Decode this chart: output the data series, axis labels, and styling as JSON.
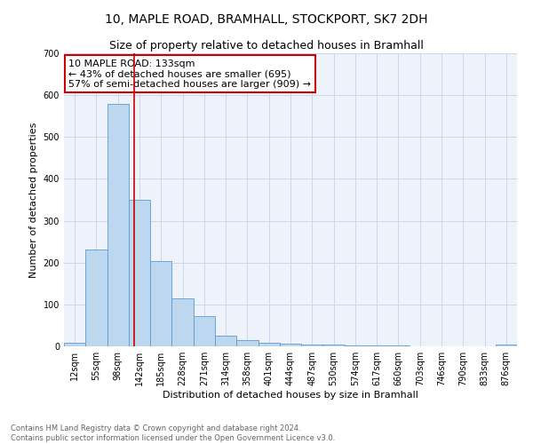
{
  "title": "10, MAPLE ROAD, BRAMHALL, STOCKPORT, SK7 2DH",
  "subtitle": "Size of property relative to detached houses in Bramhall",
  "xlabel": "Distribution of detached houses by size in Bramhall",
  "ylabel": "Number of detached properties",
  "bin_labels": [
    "12sqm",
    "55sqm",
    "98sqm",
    "142sqm",
    "185sqm",
    "228sqm",
    "271sqm",
    "314sqm",
    "358sqm",
    "401sqm",
    "444sqm",
    "487sqm",
    "530sqm",
    "574sqm",
    "617sqm",
    "660sqm",
    "703sqm",
    "746sqm",
    "790sqm",
    "833sqm",
    "876sqm"
  ],
  "bar_values": [
    8,
    232,
    580,
    350,
    203,
    115,
    72,
    25,
    15,
    9,
    6,
    5,
    4,
    3,
    2,
    2,
    1,
    1,
    1,
    1,
    4
  ],
  "bar_color": "#bdd7ee",
  "bar_edgecolor": "#5b9bd5",
  "vline_color": "#cc0000",
  "annotation_text": "10 MAPLE ROAD: 133sqm\n← 43% of detached houses are smaller (695)\n57% of semi-detached houses are larger (909) →",
  "annotation_box_edgecolor": "#cc0000",
  "ylim": [
    0,
    700
  ],
  "yticks": [
    0,
    100,
    200,
    300,
    400,
    500,
    600,
    700
  ],
  "footer_text": "Contains HM Land Registry data © Crown copyright and database right 2024.\nContains public sector information licensed under the Open Government Licence v3.0.",
  "bg_color": "#eef2fb",
  "grid_color": "#c8d4ea",
  "title_fontsize": 10,
  "subtitle_fontsize": 9,
  "axis_label_fontsize": 8,
  "tick_fontsize": 7,
  "annot_fontsize": 8,
  "footer_fontsize": 6
}
